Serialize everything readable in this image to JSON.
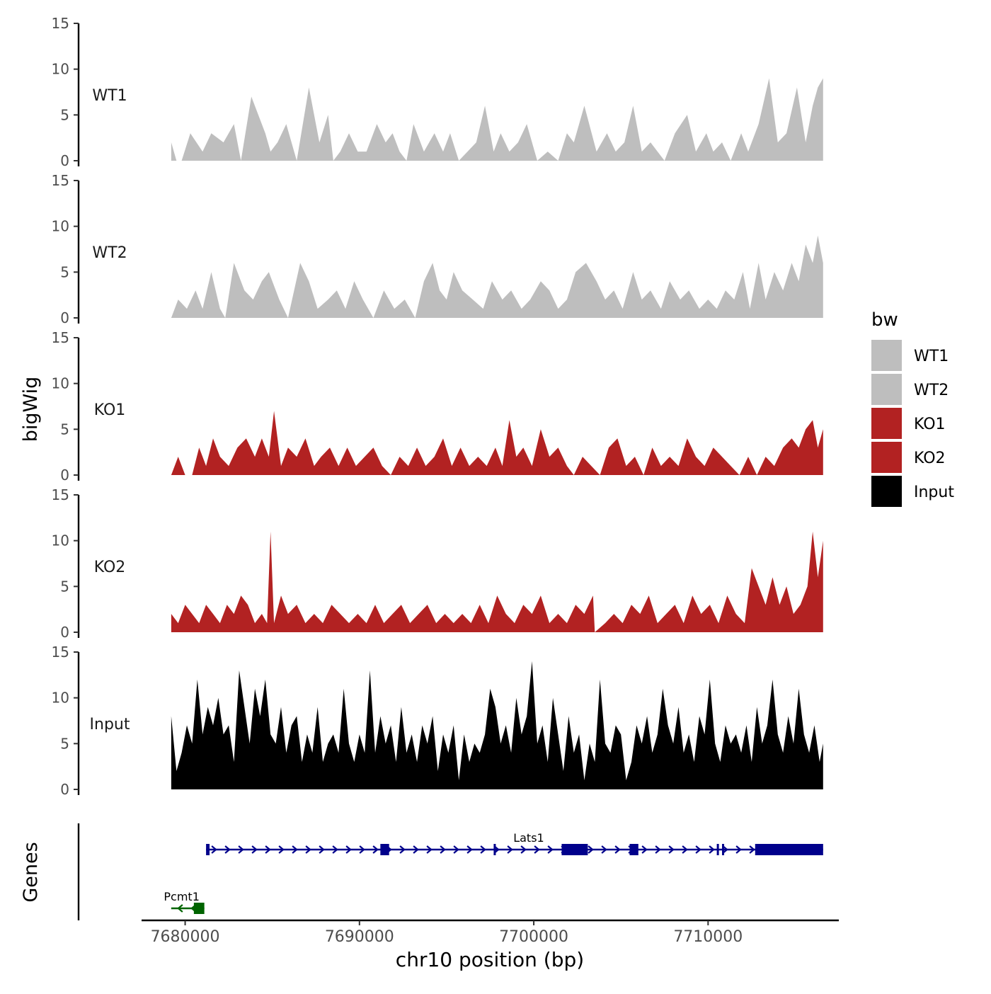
{
  "chart_data": {
    "type": "area",
    "title": "",
    "ylabel": "bigWig",
    "xlabel": "chr10 position (bp)",
    "genes_label": "Genes",
    "xlim": [
      7677500,
      7717500
    ],
    "ylim": [
      0,
      15
    ],
    "yticks": [
      0,
      5,
      10,
      15
    ],
    "xticks": [
      7680000,
      7690000,
      7700000,
      7710000
    ],
    "xtick_labels": [
      "7680000",
      "7690000",
      "7700000",
      "7710000"
    ],
    "legend": {
      "title": "bw",
      "position": "right",
      "entries": [
        {
          "label": "WT1",
          "color": "#bebebe"
        },
        {
          "label": "WT2",
          "color": "#bebebe"
        },
        {
          "label": "KO1",
          "color": "#b22222"
        },
        {
          "label": "KO2",
          "color": "#b22222"
        },
        {
          "label": "Input",
          "color": "#000000"
        }
      ]
    },
    "series": [
      {
        "name": "WT1",
        "color": "#bebebe",
        "x": [
          7679200,
          7679500,
          7679800,
          7680300,
          7681000,
          7681500,
          7682200,
          7682800,
          7683200,
          7683800,
          7684600,
          7684900,
          7685300,
          7685800,
          7686400,
          7687100,
          7687700,
          7688200,
          7688500,
          7688900,
          7689400,
          7689900,
          7690400,
          7691000,
          7691500,
          7691900,
          7692300,
          7692700,
          7693100,
          7693700,
          7694300,
          7694800,
          7695200,
          7695700,
          7696200,
          7696700,
          7697200,
          7697700,
          7698100,
          7698600,
          7699100,
          7699600,
          7700200,
          7700800,
          7701400,
          7701900,
          7702300,
          7702900,
          7703600,
          7704200,
          7704700,
          7705200,
          7705700,
          7706200,
          7706700,
          7707100,
          7707500,
          7708100,
          7708800,
          7709300,
          7709900,
          7710300,
          7710800,
          7711300,
          7711900,
          7712300,
          7712900,
          7713500,
          7714000,
          7714500,
          7715100,
          7715600,
          7716000,
          7716300,
          7716600
        ],
        "values": [
          2,
          0,
          0,
          3,
          1,
          3,
          2,
          4,
          0,
          7,
          3,
          1,
          2,
          4,
          0,
          8,
          2,
          5,
          0,
          1,
          3,
          1,
          1,
          4,
          2,
          3,
          1,
          0,
          4,
          1,
          3,
          1,
          3,
          0,
          1,
          2,
          6,
          1,
          3,
          1,
          2,
          4,
          0,
          1,
          0,
          3,
          2,
          6,
          1,
          3,
          1,
          2,
          6,
          1,
          2,
          1,
          0,
          3,
          5,
          1,
          3,
          1,
          2,
          0,
          3,
          1,
          4,
          9,
          2,
          3,
          8,
          2,
          6,
          8,
          9
        ]
      },
      {
        "name": "WT2",
        "color": "#bebebe",
        "x": [
          7679200,
          7679600,
          7680100,
          7680600,
          7681000,
          7681500,
          7682000,
          7682300,
          7682800,
          7683400,
          7683900,
          7684400,
          7684800,
          7685400,
          7685900,
          7686600,
          7687100,
          7687600,
          7688200,
          7688700,
          7689200,
          7689700,
          7690200,
          7690800,
          7691400,
          7692000,
          7692600,
          7693200,
          7693700,
          7694200,
          7694600,
          7695000,
          7695400,
          7695900,
          7696500,
          7697100,
          7697600,
          7698200,
          7698700,
          7699300,
          7699800,
          7700400,
          7700900,
          7701400,
          7701900,
          7702400,
          7703000,
          7703600,
          7704100,
          7704600,
          7705100,
          7705700,
          7706200,
          7706700,
          7707300,
          7707800,
          7708400,
          7708900,
          7709500,
          7710000,
          7710500,
          7711000,
          7711500,
          7712000,
          7712400,
          7712900,
          7713300,
          7713800,
          7714300,
          7714800,
          7715200,
          7715600,
          7716000,
          7716300,
          7716600
        ],
        "values": [
          0,
          2,
          1,
          3,
          1,
          5,
          1,
          0,
          6,
          3,
          2,
          4,
          5,
          2,
          0,
          6,
          4,
          1,
          2,
          3,
          1,
          4,
          2,
          0,
          3,
          1,
          2,
          0,
          4,
          6,
          3,
          2,
          5,
          3,
          2,
          1,
          4,
          2,
          3,
          1,
          2,
          4,
          3,
          1,
          2,
          5,
          6,
          4,
          2,
          3,
          1,
          5,
          2,
          3,
          1,
          4,
          2,
          3,
          1,
          2,
          1,
          3,
          2,
          5,
          1,
          6,
          2,
          5,
          3,
          6,
          4,
          8,
          6,
          9,
          6
        ]
      },
      {
        "name": "KO1",
        "color": "#b22222",
        "x": [
          7679200,
          7679600,
          7680000,
          7680400,
          7680800,
          7681200,
          7681600,
          7682000,
          7682500,
          7683000,
          7683500,
          7684000,
          7684400,
          7684800,
          7685100,
          7685500,
          7685900,
          7686400,
          7686900,
          7687400,
          7687800,
          7688300,
          7688800,
          7689300,
          7689800,
          7690300,
          7690800,
          7691300,
          7691800,
          7692300,
          7692800,
          7693300,
          7693800,
          7694300,
          7694800,
          7695300,
          7695800,
          7696300,
          7696800,
          7697300,
          7697800,
          7698200,
          7698600,
          7699000,
          7699400,
          7699900,
          7700400,
          7700900,
          7701400,
          7701900,
          7702300,
          7702800,
          7703300,
          7703800,
          7704300,
          7704800,
          7705300,
          7705800,
          7706300,
          7706800,
          7707300,
          7707800,
          7708300,
          7708800,
          7709300,
          7709800,
          7710300,
          7710800,
          7711300,
          7711800,
          7712300,
          7712800,
          7713300,
          7713800,
          7714300,
          7714800,
          7715200,
          7715600,
          7716000,
          7716300,
          7716600
        ],
        "values": [
          0,
          2,
          0,
          0,
          3,
          1,
          4,
          2,
          1,
          3,
          4,
          2,
          4,
          2,
          7,
          1,
          3,
          2,
          4,
          1,
          2,
          3,
          1,
          3,
          1,
          2,
          3,
          1,
          0,
          2,
          1,
          3,
          1,
          2,
          4,
          1,
          3,
          1,
          2,
          1,
          3,
          1,
          6,
          2,
          3,
          1,
          5,
          2,
          3,
          1,
          0,
          2,
          1,
          0,
          3,
          4,
          1,
          2,
          0,
          3,
          1,
          2,
          1,
          4,
          2,
          1,
          3,
          2,
          1,
          0,
          2,
          0,
          2,
          1,
          3,
          4,
          3,
          5,
          6,
          3,
          5
        ]
      },
      {
        "name": "KO2",
        "color": "#b22222",
        "x": [
          7679200,
          7679600,
          7680000,
          7680400,
          7680800,
          7681200,
          7681600,
          7682000,
          7682400,
          7682800,
          7683200,
          7683600,
          7684000,
          7684400,
          7684700,
          7684900,
          7685100,
          7685500,
          7685900,
          7686400,
          7686900,
          7687400,
          7687900,
          7688400,
          7688900,
          7689400,
          7689900,
          7690400,
          7690900,
          7691400,
          7691900,
          7692400,
          7692900,
          7693400,
          7693900,
          7694400,
          7694900,
          7695400,
          7695900,
          7696400,
          7696900,
          7697400,
          7697900,
          7698400,
          7698900,
          7699400,
          7699900,
          7700400,
          7700900,
          7701400,
          7701900,
          7702400,
          7702900,
          7703400,
          7703500,
          7704100,
          7704600,
          7705100,
          7705600,
          7706100,
          7706600,
          7707100,
          7707600,
          7708100,
          7708600,
          7709100,
          7709600,
          7710100,
          7710600,
          7711100,
          7711600,
          7712100,
          7712500,
          7712900,
          7713300,
          7713700,
          7714100,
          7714500,
          7714900,
          7715300,
          7715700,
          7716000,
          7716300,
          7716600
        ],
        "values": [
          2,
          1,
          3,
          2,
          1,
          3,
          2,
          1,
          3,
          2,
          4,
          3,
          1,
          2,
          1,
          11,
          1,
          4,
          2,
          3,
          1,
          2,
          1,
          3,
          2,
          1,
          2,
          1,
          3,
          1,
          2,
          3,
          1,
          2,
          3,
          1,
          2,
          1,
          2,
          1,
          3,
          1,
          4,
          2,
          1,
          3,
          2,
          4,
          1,
          2,
          1,
          3,
          2,
          4,
          0,
          1,
          2,
          1,
          3,
          2,
          4,
          1,
          2,
          3,
          1,
          4,
          2,
          3,
          1,
          4,
          2,
          1,
          7,
          5,
          3,
          6,
          3,
          5,
          2,
          3,
          5,
          11,
          6,
          10
        ]
      },
      {
        "name": "Input",
        "color": "#000000",
        "x": [
          7679200,
          7679500,
          7679800,
          7680100,
          7680400,
          7680700,
          7681000,
          7681300,
          7681600,
          7681900,
          7682200,
          7682500,
          7682800,
          7683100,
          7683400,
          7683700,
          7684000,
          7684300,
          7684600,
          7684900,
          7685200,
          7685500,
          7685800,
          7686100,
          7686400,
          7686700,
          7687000,
          7687300,
          7687600,
          7687900,
          7688200,
          7688500,
          7688800,
          7689100,
          7689400,
          7689700,
          7690000,
          7690300,
          7690600,
          7690900,
          7691200,
          7691500,
          7691800,
          7692100,
          7692400,
          7692700,
          7693000,
          7693300,
          7693600,
          7693900,
          7694200,
          7694500,
          7694800,
          7695100,
          7695400,
          7695700,
          7696000,
          7696300,
          7696600,
          7696900,
          7697200,
          7697500,
          7697800,
          7698100,
          7698400,
          7698700,
          7699000,
          7699300,
          7699600,
          7699900,
          7700200,
          7700500,
          7700800,
          7701100,
          7701400,
          7701700,
          7702000,
          7702300,
          7702600,
          7702900,
          7703200,
          7703500,
          7703800,
          7704100,
          7704400,
          7704700,
          7705000,
          7705300,
          7705600,
          7705900,
          7706200,
          7706500,
          7706800,
          7707100,
          7707400,
          7707700,
          7708000,
          7708300,
          7708600,
          7708900,
          7709200,
          7709500,
          7709800,
          7710100,
          7710400,
          7710700,
          7711000,
          7711300,
          7711600,
          7711900,
          7712200,
          7712500,
          7712800,
          7713100,
          7713400,
          7713700,
          7714000,
          7714300,
          7714600,
          7714900,
          7715200,
          7715500,
          7715800,
          7716100,
          7716400,
          7716600
        ],
        "values": [
          8,
          2,
          4,
          7,
          5,
          12,
          6,
          9,
          7,
          10,
          6,
          7,
          3,
          13,
          9,
          5,
          11,
          8,
          12,
          6,
          5,
          9,
          4,
          7,
          8,
          3,
          6,
          4,
          9,
          3,
          5,
          6,
          4,
          11,
          5,
          3,
          6,
          4,
          13,
          4,
          8,
          5,
          7,
          3,
          9,
          4,
          6,
          3,
          7,
          5,
          8,
          2,
          6,
          4,
          7,
          1,
          6,
          3,
          5,
          4,
          6,
          11,
          9,
          5,
          7,
          4,
          10,
          6,
          8,
          14,
          5,
          7,
          3,
          10,
          6,
          2,
          8,
          4,
          6,
          1,
          5,
          3,
          12,
          5,
          4,
          7,
          6,
          1,
          3,
          7,
          5,
          8,
          4,
          6,
          11,
          7,
          5,
          9,
          4,
          6,
          3,
          8,
          6,
          12,
          5,
          3,
          7,
          5,
          6,
          4,
          7,
          3,
          9,
          5,
          7,
          12,
          6,
          4,
          8,
          5,
          11,
          6,
          4,
          7,
          3,
          5
        ]
      }
    ],
    "genes": [
      {
        "name": "Lats1",
        "color": "#00008b",
        "strand": "+",
        "row": 1,
        "start": 7681200,
        "end": 7716600,
        "exons": [
          [
            7681200,
            7681400
          ],
          [
            7691200,
            7691700
          ],
          [
            7697700,
            7697800
          ],
          [
            7701600,
            7703100
          ],
          [
            7705500,
            7706000
          ],
          [
            7710500,
            7710600
          ],
          [
            7710800,
            7710900
          ],
          [
            7712700,
            7716600
          ]
        ]
      },
      {
        "name": "Pcmt1",
        "color": "#006400",
        "strand": "-",
        "row": 2,
        "start": 7679200,
        "end": 7681100,
        "exons": [
          [
            7680500,
            7681100
          ]
        ]
      }
    ]
  }
}
